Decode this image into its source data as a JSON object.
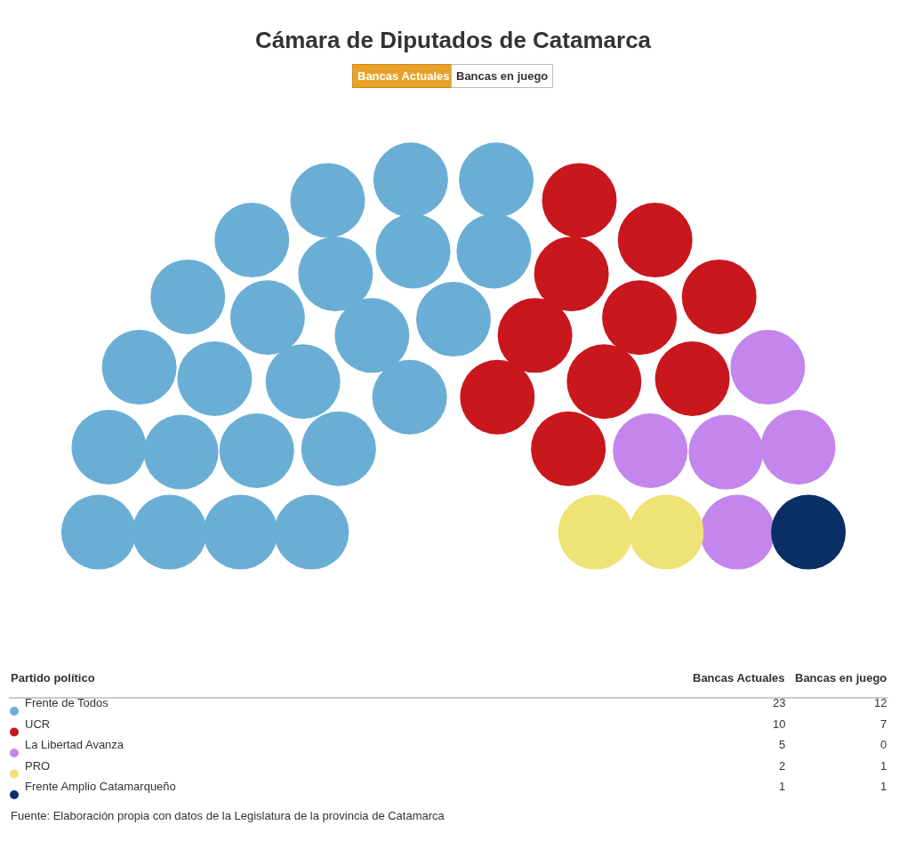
{
  "chart_data": {
    "type": "other",
    "title": "Cámara de Diputados de Catamarca",
    "legend_title": "Partido político",
    "categories": [
      "Frente de Todos",
      "UCR",
      "La Libertad Avanza",
      "PRO",
      "Frente Amplio Catamarqueño"
    ],
    "colors": [
      "#6aaed6",
      "#c8171d",
      "#c485ec",
      "#efe276",
      "#0a2e66"
    ],
    "series": [
      {
        "name": "Bancas Actuales",
        "values": [
          23,
          10,
          5,
          2,
          1
        ]
      },
      {
        "name": "Bancas en juego",
        "values": [
          12,
          7,
          0,
          1,
          1
        ]
      }
    ],
    "data_labels": true,
    "annotations": [
      "Fuente: Elaboración propia con datos de la Legislatura de la provincia de Catamarca"
    ]
  }
}
